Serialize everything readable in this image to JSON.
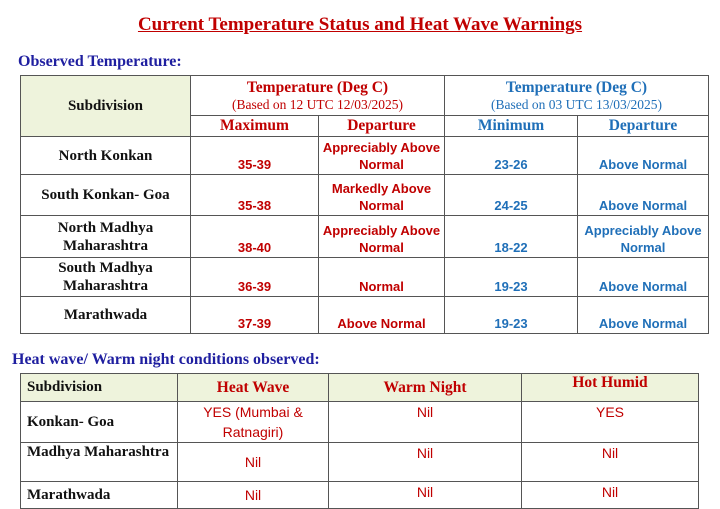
{
  "title": "Current Temperature Status and Heat Wave Warnings",
  "observed": {
    "heading": "Observed Temperature:",
    "header": {
      "subdivision": "Subdivision",
      "max_group": {
        "title": "Temperature (Deg C)",
        "basis": "(Based on 12 UTC 12/03/2025)"
      },
      "min_group": {
        "title": "Temperature (Deg C)",
        "basis": "(Based on 03 UTC 13/03/2025)"
      },
      "columns": [
        "Maximum",
        "Departure",
        "Minimum",
        "Departure"
      ]
    },
    "rows": [
      [
        "North Konkan",
        "35-39",
        "Appreciably Above Normal",
        "23-26",
        "Above Normal"
      ],
      [
        "South Konkan- Goa",
        "35-38",
        "Markedly Above Normal",
        "24-25",
        "Above Normal"
      ],
      [
        "North Madhya Maharashtra",
        "38-40",
        "Appreciably Above Normal",
        "18-22",
        "Appreciably Above Normal"
      ],
      [
        "South Madhya Maharashtra",
        "36-39",
        "Normal",
        "19-23",
        "Above Normal"
      ],
      [
        "Marathwada",
        "37-39",
        "Above Normal",
        "19-23",
        "Above Normal"
      ]
    ]
  },
  "conditions": {
    "heading": "Heat wave/ Warm night conditions observed:",
    "columns": [
      "Subdivision",
      "Heat Wave",
      "Warm Night",
      "Hot Humid"
    ],
    "rows": [
      [
        "Konkan- Goa",
        "YES (Mumbai & Ratnagiri)",
        "Nil",
        "YES"
      ],
      [
        "Madhya Maharashtra",
        "Nil",
        "Nil",
        "Nil"
      ],
      [
        "Marathwada",
        "Nil",
        "Nil",
        "Nil"
      ]
    ]
  }
}
